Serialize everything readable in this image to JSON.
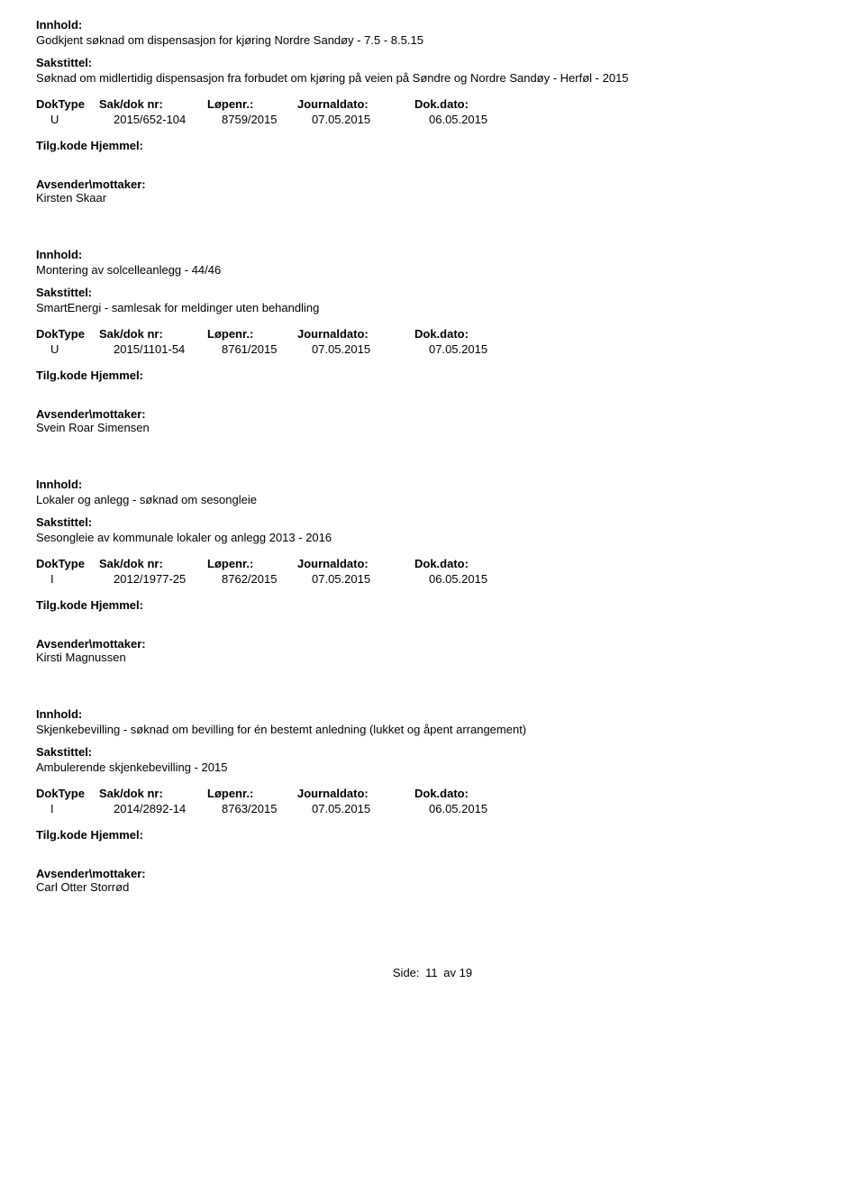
{
  "labels": {
    "innhold": "Innhold:",
    "sakstittel": "Sakstittel:",
    "doktype": "DokType",
    "sakdok": "Sak/dok nr:",
    "lopenr": "Løpenr.:",
    "journaldato": "Journaldato:",
    "dokdato": "Dok.dato:",
    "tilgkode": "Tilg.kode",
    "hjemmel": "Hjemmel:",
    "avsender": "Avsender\\mottaker:",
    "side": "Side:",
    "av": "av"
  },
  "entries": [
    {
      "innhold": "Godkjent søknad om dispensasjon for kjøring Nordre Sandøy - 7.5 - 8.5.15",
      "sakstittel": "Søknad om midlertidig dispensasjon fra forbudet om kjøring på veien på Søndre og Nordre Sandøy - Herføl - 2015",
      "doktype": "U",
      "sakdok": "2015/652-104",
      "lopenr": "8759/2015",
      "journaldato": "07.05.2015",
      "dokdato": "06.05.2015",
      "avsender": "Kirsten Skaar"
    },
    {
      "innhold": "Montering av solcelleanlegg - 44/46",
      "sakstittel": "SmartEnergi - samlesak for meldinger uten behandling",
      "doktype": "U",
      "sakdok": "2015/1101-54",
      "lopenr": "8761/2015",
      "journaldato": "07.05.2015",
      "dokdato": "07.05.2015",
      "avsender": "Svein Roar Simensen"
    },
    {
      "innhold": "Lokaler og anlegg - søknad om sesongleie",
      "sakstittel": "Sesongleie av kommunale lokaler og anlegg  2013 - 2016",
      "doktype": "I",
      "sakdok": "2012/1977-25",
      "lopenr": "8762/2015",
      "journaldato": "07.05.2015",
      "dokdato": "06.05.2015",
      "avsender": "Kirsti Magnussen"
    },
    {
      "innhold": "Skjenkebevilling - søknad om bevilling for én bestemt anledning (lukket og åpent arrangement)",
      "sakstittel": "Ambulerende skjenkebevilling - 2015",
      "doktype": "I",
      "sakdok": "2014/2892-14",
      "lopenr": "8763/2015",
      "journaldato": "07.05.2015",
      "dokdato": "06.05.2015",
      "avsender": "Carl Otter Storrød"
    }
  ],
  "page": {
    "current": "11",
    "total": "19"
  }
}
